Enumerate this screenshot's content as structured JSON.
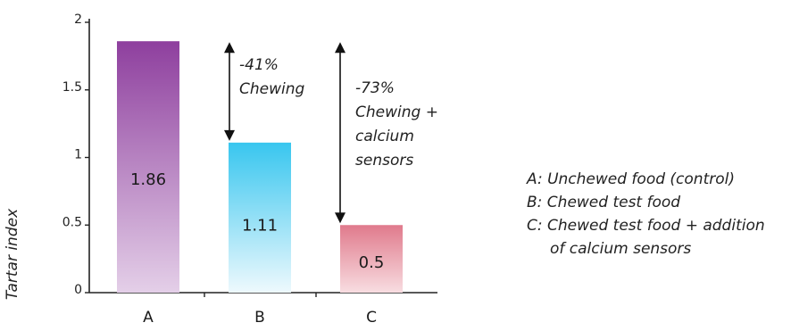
{
  "chart_data": {
    "type": "bar",
    "categories": [
      "A",
      "B",
      "C"
    ],
    "values": [
      1.86,
      1.11,
      0.5
    ],
    "value_labels": [
      "1.86",
      "1.11",
      "0.5"
    ],
    "ylabel": "Tartar index",
    "xlabel": "",
    "ylim": [
      0,
      2
    ],
    "yticks": [
      0,
      0.5,
      1,
      1.5,
      2
    ],
    "ytick_labels": [
      "0",
      "0.5",
      "1",
      "1.5",
      "2"
    ],
    "grid": false,
    "legend_position": "right",
    "bar_colors": [
      {
        "top": "#8e3f9e",
        "bottom": "#e4cfe8"
      },
      {
        "top": "#38c6ef",
        "bottom": "#eef9fd"
      },
      {
        "top": "#e07a8c",
        "bottom": "#f8dde1"
      }
    ],
    "annotations": [
      {
        "from": "A",
        "to": "B",
        "lines": [
          "-41%",
          "Chewing"
        ]
      },
      {
        "from": "A",
        "to": "C",
        "lines": [
          "-73%",
          "Chewing +",
          "calcium",
          "sensors"
        ]
      }
    ],
    "legend": [
      "A: Unchewed food (control)",
      "B: Chewed test food",
      "C: Chewed test food + addition",
      "of calcium sensors"
    ]
  }
}
